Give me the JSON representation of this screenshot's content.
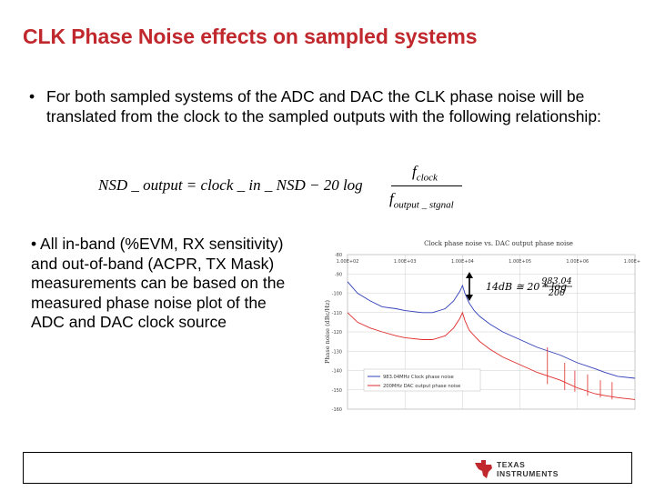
{
  "slide": {
    "title": "CLK Phase Noise effects on sampled systems",
    "bullet1": {
      "marker": "•",
      "text": "For both sampled systems of the ADC and DAC the CLK phase noise will be translated from the clock to the sampled outputs with the following relationship:"
    },
    "formula": {
      "lhs": "NSD _ output = clock _ in _ NSD − 20 log",
      "numerator": "f",
      "numerator_sub": "clock",
      "denominator": "f",
      "denominator_sub": "output _ stgnal"
    },
    "bullet2": "• All in-band (%EVM, RX sensitivity) and out-of-band (ACPR, TX Mask) measurements can be based on the measured phase noise plot of the ADC and DAC clock source",
    "logo": {
      "line1": "TEXAS",
      "line2": "INSTRUMENTS",
      "color": "#c0282d"
    }
  },
  "chart_data": {
    "type": "line",
    "title": "Clock phase noise vs. DAC output phase noise",
    "ylabel": "Phase noise (dBc/Hz)",
    "xscale": "log",
    "xlim": [
      100,
      10000000
    ],
    "ylim": [
      -160,
      -80
    ],
    "x_ticks": [
      "1.00E+02",
      "1.00E+03",
      "1.00E+04",
      "1.00E+05",
      "1.00E+06",
      "1.00E+07"
    ],
    "y_ticks": [
      "-80",
      "-90",
      "-100",
      "-110",
      "-120",
      "-130",
      "-140",
      "-150",
      "-160"
    ],
    "grid": true,
    "legend_position": "bottom-left",
    "annotation": {
      "text": "14dB ≅ 20 * log",
      "numerator": "983.04",
      "denominator": "200"
    },
    "series": [
      {
        "name": "983.04MHz Clock phase noise",
        "color": "#2f3fb8",
        "x": [
          100,
          150,
          250,
          400,
          700,
          1000,
          2000,
          3000,
          5000,
          7000,
          9000,
          10000,
          11000,
          13000,
          16000,
          20000,
          30000,
          50000,
          100000,
          200000,
          500000,
          1000000,
          2000000,
          3000000,
          5000000,
          10000000
        ],
        "y": [
          -94,
          -100,
          -104,
          -107,
          -108,
          -109,
          -110,
          -110,
          -108,
          -104,
          -99,
          -96,
          -100,
          -105,
          -109,
          -112,
          -116,
          -120,
          -124,
          -128,
          -132,
          -136,
          -139,
          -141,
          -143,
          -144
        ]
      },
      {
        "name": "200MHz DAC output phase noise",
        "color": "#e02b2b",
        "x": [
          100,
          150,
          250,
          400,
          700,
          1000,
          2000,
          3000,
          5000,
          7000,
          9000,
          10000,
          11000,
          13000,
          16000,
          20000,
          30000,
          50000,
          100000,
          200000,
          500000,
          1000000,
          2000000,
          3000000,
          5000000,
          10000000
        ],
        "y": [
          -110,
          -115,
          -118,
          -120,
          -122,
          -123,
          -124,
          -124,
          -122,
          -118,
          -113,
          -110,
          -114,
          -119,
          -122,
          -125,
          -129,
          -133,
          -137,
          -141,
          -145,
          -149,
          -152,
          -153,
          -154,
          -155
        ]
      }
    ]
  }
}
